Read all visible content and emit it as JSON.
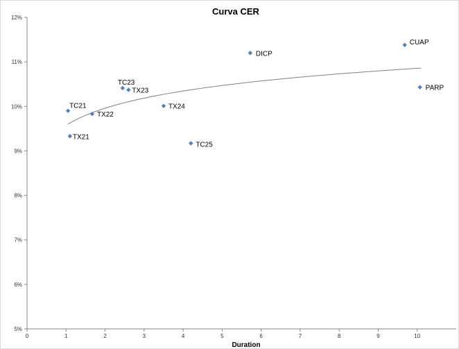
{
  "chart_data": {
    "type": "scatter",
    "title": "Curva CER",
    "xlabel": "Duration",
    "ylabel": "",
    "xlim": [
      0,
      11
    ],
    "ylim": [
      5,
      12
    ],
    "x_ticks": [
      "0",
      "1",
      "2",
      "3",
      "4",
      "5",
      "6",
      "7",
      "8",
      "9",
      "10"
    ],
    "y_ticks": [
      "5%",
      "6%",
      "7%",
      "8%",
      "9%",
      "10%",
      "11%",
      "12%"
    ],
    "grid": false,
    "legend": "none",
    "marker_color": "#4f81bd",
    "trendline_color": "#7f7f7f",
    "trendline": {
      "type": "logarithmic",
      "x_start": 1.05,
      "x_end": 10.1,
      "y_start": 9.6,
      "y_end": 10.86
    },
    "points": [
      {
        "label": "TC21",
        "x": 1.05,
        "y": 9.9
      },
      {
        "label": "TX21",
        "x": 1.1,
        "y": 9.33
      },
      {
        "label": "TX22",
        "x": 1.67,
        "y": 9.83
      },
      {
        "label": "TC23",
        "x": 2.45,
        "y": 10.41
      },
      {
        "label": "TX23",
        "x": 2.6,
        "y": 10.37
      },
      {
        "label": "TX24",
        "x": 3.5,
        "y": 10.01
      },
      {
        "label": "TC25",
        "x": 4.2,
        "y": 9.17
      },
      {
        "label": "DICP",
        "x": 5.72,
        "y": 11.2
      },
      {
        "label": "CUAP",
        "x": 9.68,
        "y": 11.38
      },
      {
        "label": "PARP",
        "x": 10.07,
        "y": 10.43
      }
    ]
  }
}
